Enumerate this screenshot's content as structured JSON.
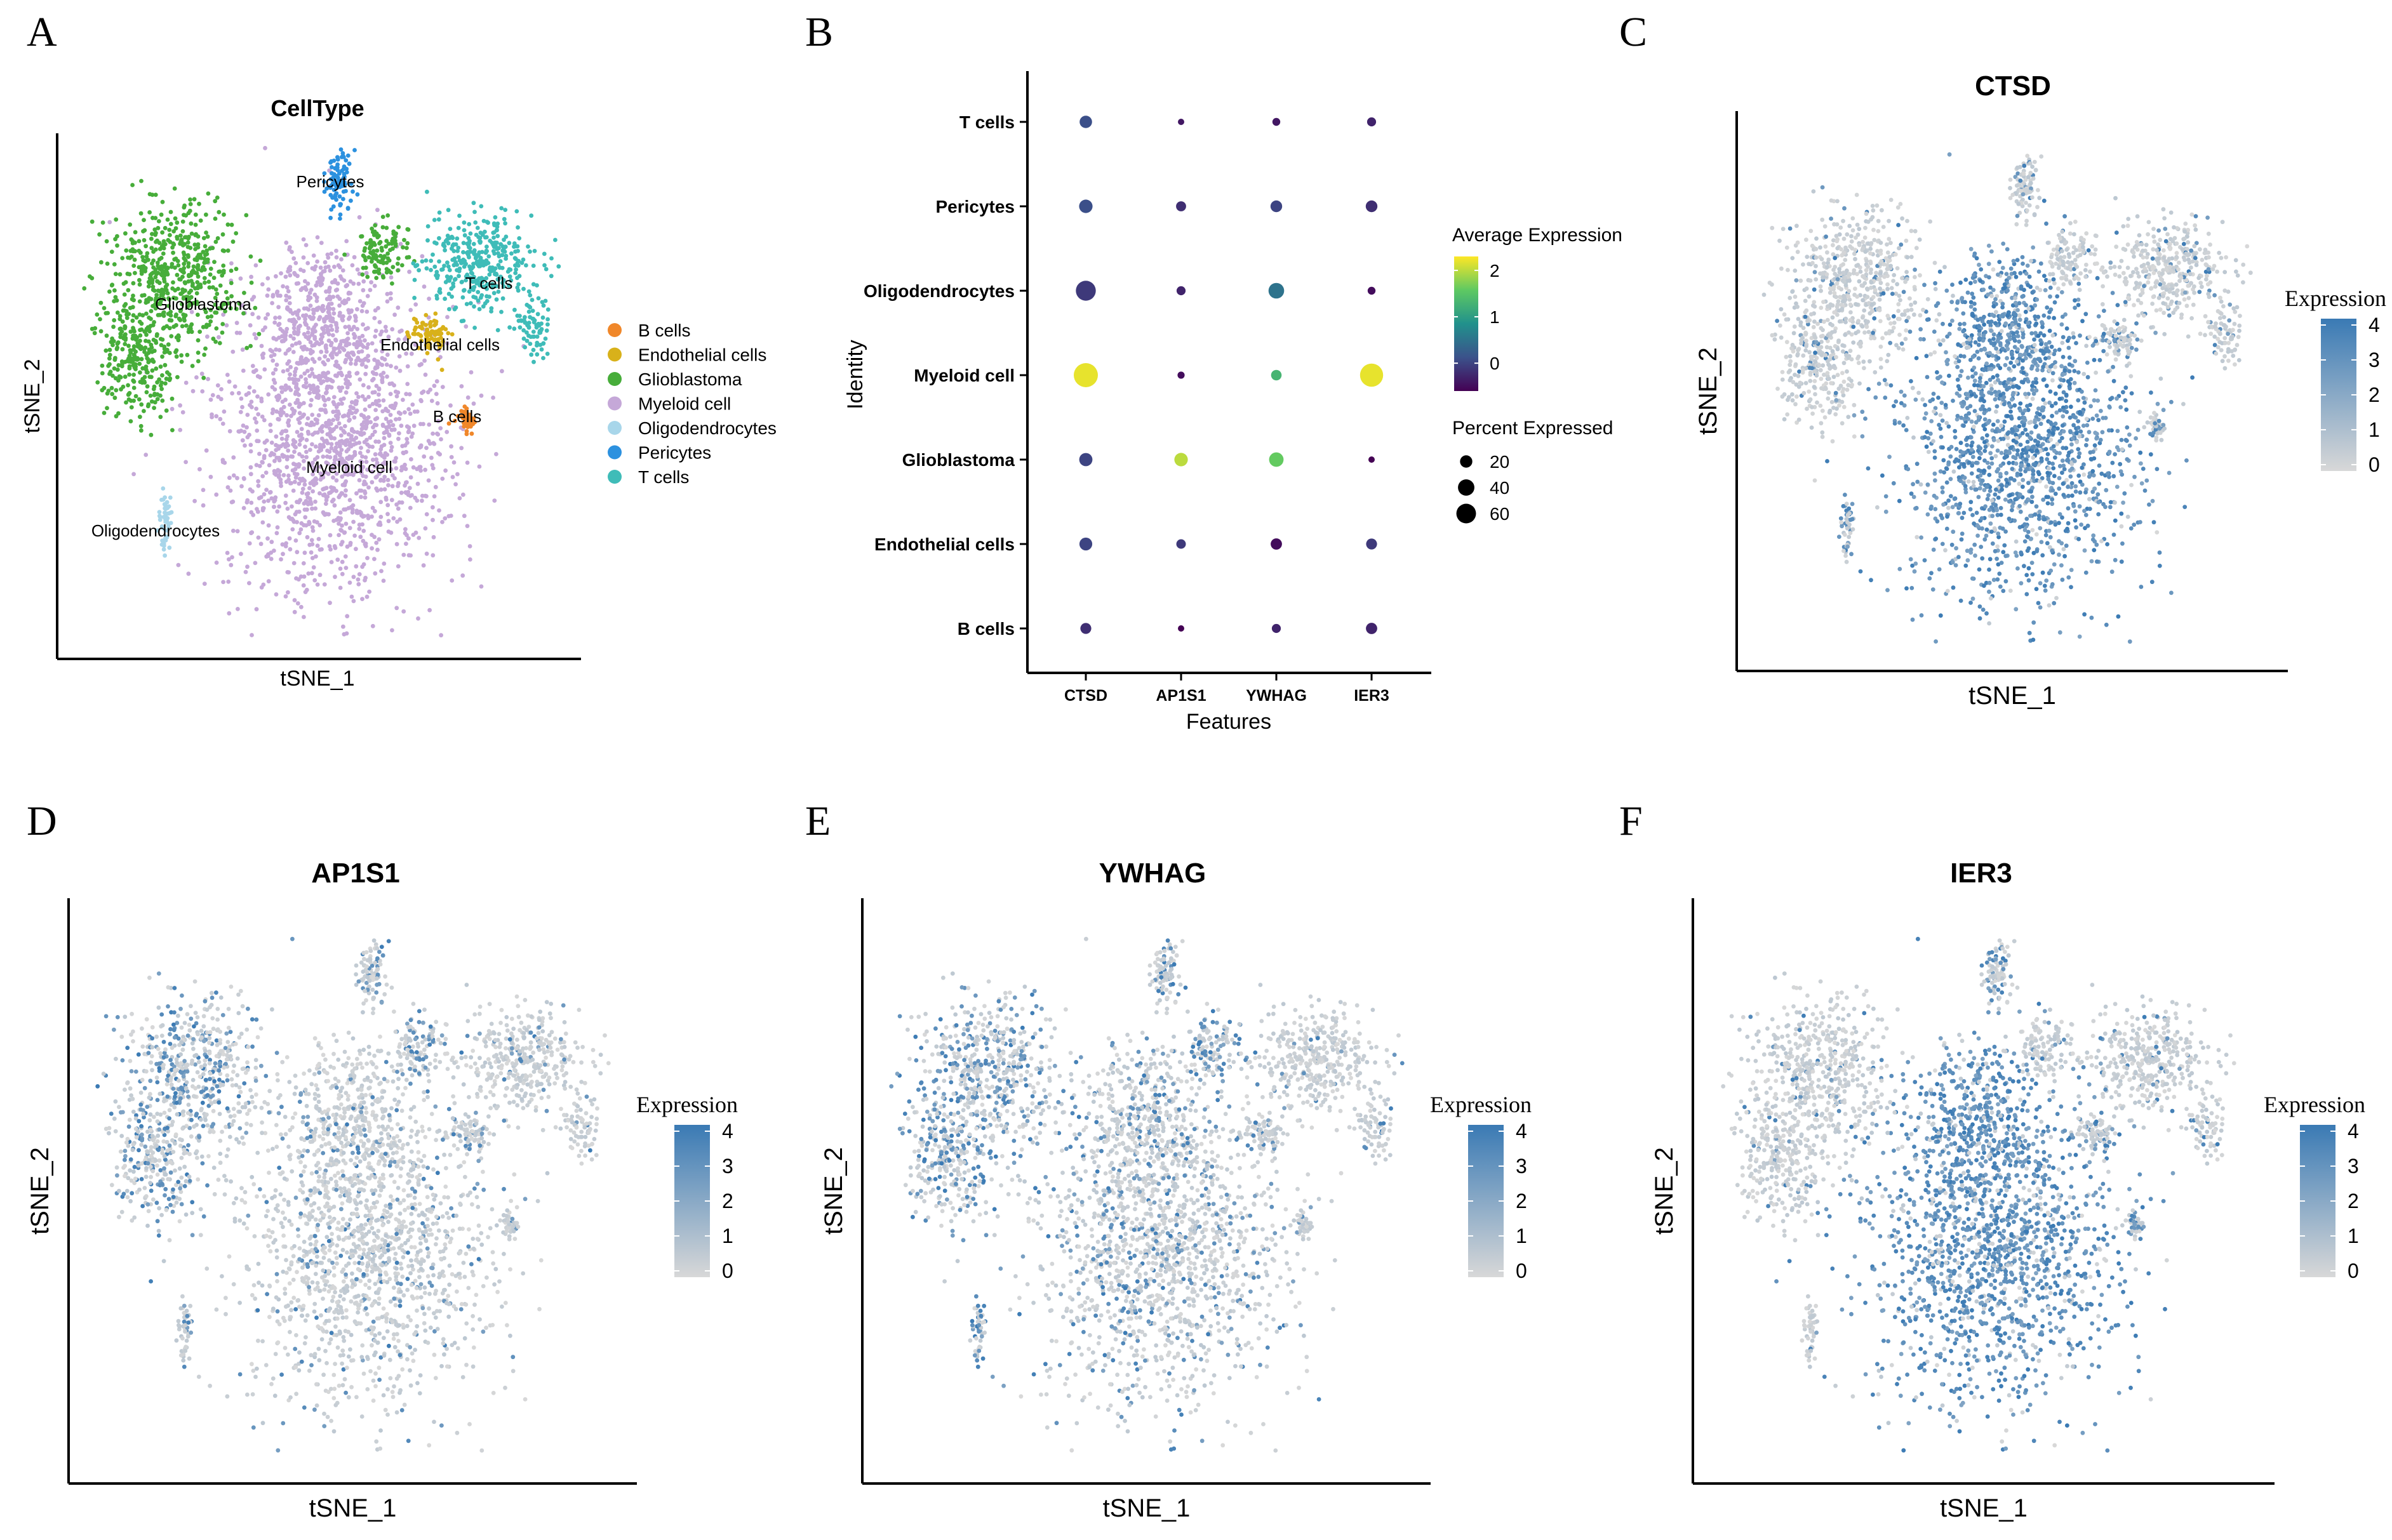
{
  "colors": {
    "scale_low": "#d8d8d8",
    "scale_high": "#3a7ab4",
    "viridis": [
      "#440154",
      "#3b528b",
      "#21918c",
      "#5ec962",
      "#fde725"
    ],
    "celltypes": {
      "B cells": "#f0872a",
      "Endothelial cells": "#d8b11a",
      "Glioblastoma": "#47ad3a",
      "Myeloid cell": "#c5a8d8",
      "Oligodendrocytes": "#a8d6ea",
      "Pericytes": "#2c91df",
      "T cells": "#3fbcb8"
    }
  },
  "chart_data": [
    {
      "panel": "A",
      "type": "scatter",
      "title": "CellType",
      "xlabel": "tSNE_1",
      "ylabel": "tSNE_2",
      "legend": [
        "B cells",
        "Endothelial cells",
        "Glioblastoma",
        "Myeloid cell",
        "Oligodendrocytes",
        "Pericytes",
        "T cells"
      ],
      "cluster_labels": [
        "Pericytes",
        "T cells",
        "Glioblastoma",
        "Endothelial cells",
        "B cells",
        "Myeloid cell",
        "Oligodendrocytes"
      ]
    },
    {
      "panel": "B",
      "type": "dot",
      "xlabel": "Features",
      "ylabel": "Identity",
      "features": [
        "CTSD",
        "AP1S1",
        "YWHAG",
        "IER3"
      ],
      "identities": [
        "T cells",
        "Pericytes",
        "Oligodendrocytes",
        "Myeloid cell",
        "Glioblastoma",
        "Endothelial cells",
        "B cells"
      ],
      "avg_expression": [
        [
          0.1,
          -0.4,
          -0.4,
          -0.3
        ],
        [
          0.1,
          -0.2,
          0.0,
          -0.2
        ],
        [
          -0.1,
          -0.3,
          0.5,
          -0.5
        ],
        [
          2.2,
          -0.5,
          1.3,
          2.2
        ],
        [
          0.0,
          2.0,
          1.6,
          -0.6
        ],
        [
          0.0,
          -0.1,
          -0.5,
          -0.1
        ],
        [
          -0.2,
          -0.6,
          -0.3,
          -0.3
        ]
      ],
      "pct_expressed": [
        [
          14,
          2,
          4,
          6
        ],
        [
          17,
          8,
          12,
          12
        ],
        [
          43,
          6,
          24,
          4
        ],
        [
          66,
          3,
          9,
          60
        ],
        [
          16,
          17,
          20,
          2
        ],
        [
          15,
          7,
          11,
          10
        ],
        [
          10,
          2,
          6,
          11
        ]
      ],
      "color_legend_title": "Average Expression",
      "color_ticks": [
        "2",
        "1",
        "0"
      ],
      "size_legend_title": "Percent Expressed",
      "size_ticks": [
        "20",
        "40",
        "60"
      ]
    },
    {
      "panel": "C",
      "type": "scatter",
      "title": "CTSD",
      "xlabel": "tSNE_1",
      "ylabel": "tSNE_2",
      "legend_title": "Expression",
      "scale_ticks": [
        "4",
        "3",
        "2",
        "1",
        "0"
      ]
    },
    {
      "panel": "D",
      "type": "scatter",
      "title": "AP1S1",
      "xlabel": "tSNE_1",
      "ylabel": "tSNE_2",
      "legend_title": "Expression",
      "scale_ticks": [
        "4",
        "3",
        "2",
        "1",
        "0"
      ]
    },
    {
      "panel": "E",
      "type": "scatter",
      "title": "YWHAG",
      "xlabel": "tSNE_1",
      "ylabel": "tSNE_2",
      "legend_title": "Expression",
      "scale_ticks": [
        "4",
        "3",
        "2",
        "1",
        "0"
      ]
    },
    {
      "panel": "F",
      "type": "scatter",
      "title": "IER3",
      "xlabel": "tSNE_1",
      "ylabel": "tSNE_2",
      "legend_title": "Expression",
      "scale_ticks": [
        "4",
        "3",
        "2",
        "1",
        "0"
      ]
    }
  ],
  "expression_levels": {
    "CTSD": {
      "Myeloid cell": 0.9,
      "Glioblastoma": 0.08,
      "T cells": 0.12,
      "Pericytes": 0.2,
      "Oligodendrocytes": 0.6,
      "Endothelial cells": 0.25,
      "B cells": 0.25
    },
    "AP1S1": {
      "Myeloid cell": 0.12,
      "Glioblastoma": 0.42,
      "T cells": 0.05,
      "Pericytes": 0.25,
      "Oligodendrocytes": 0.2,
      "Endothelial cells": 0.2,
      "B cells": 0.1
    },
    "YWHAG": {
      "Myeloid cell": 0.2,
      "Glioblastoma": 0.4,
      "T cells": 0.06,
      "Pericytes": 0.25,
      "Oligodendrocytes": 0.45,
      "Endothelial cells": 0.1,
      "B cells": 0.1
    },
    "IER3": {
      "Myeloid cell": 0.85,
      "Glioblastoma": 0.05,
      "T cells": 0.08,
      "Pericytes": 0.35,
      "Oligodendrocytes": 0.05,
      "Endothelial cells": 0.3,
      "B cells": 0.4
    }
  }
}
